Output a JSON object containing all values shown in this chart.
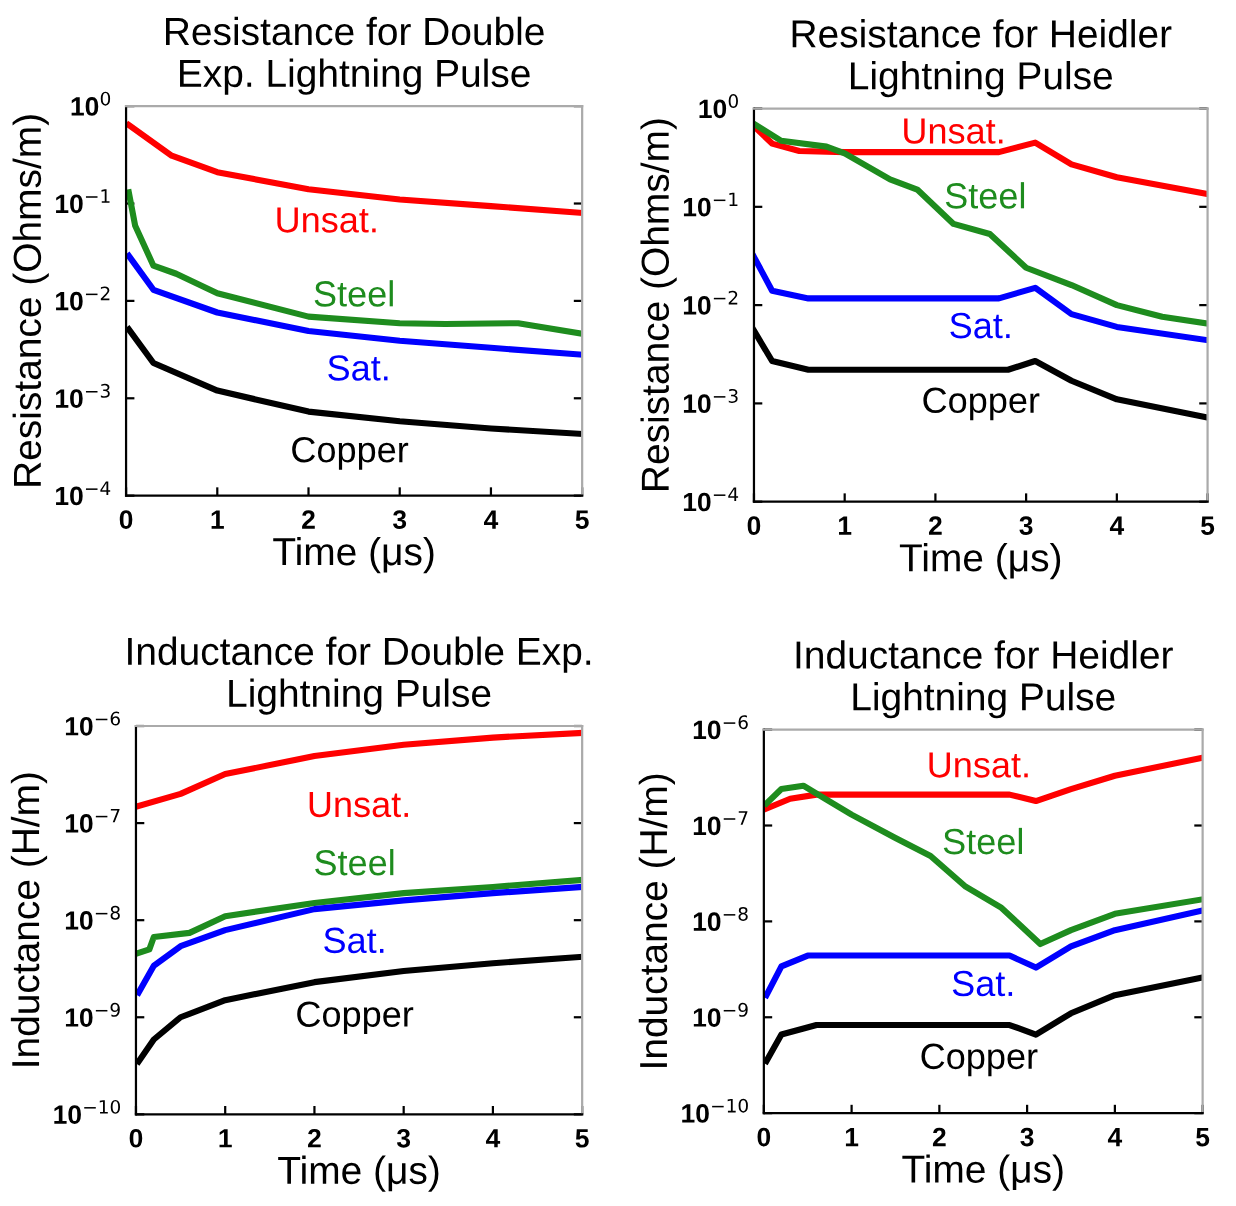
{
  "chart_data": [
    {
      "type": "line",
      "title": "Resistance for Double\nExp. Lightning Pulse",
      "xlabel": "Time (μs)",
      "ylabel": "Resistance (Ohms/m)",
      "log": "y",
      "xlim": [
        0,
        5
      ],
      "xticks": [
        0,
        1,
        2,
        3,
        4,
        5
      ],
      "ylim": [
        0.0001,
        1
      ],
      "yticks": [
        {
          "value": 0.0001,
          "label": "10$^{−4}$"
        },
        {
          "value": 0.001,
          "label": "10$^{−3}$"
        },
        {
          "value": 0.01,
          "label": "10$^{−2}$"
        },
        {
          "value": 0.1,
          "label": "10$^{−1}$"
        },
        {
          "value": 1,
          "label": "10$^{0}$"
        }
      ],
      "series": [
        {
          "name": "Unsat.",
          "color": "#ff0000",
          "x": [
            0.03,
            0.5,
            1,
            2,
            3,
            4,
            5
          ],
          "values": [
            0.64,
            0.31,
            0.21,
            0.14,
            0.11,
            0.094,
            0.08
          ]
        },
        {
          "name": "Steel",
          "color": "#1e8c1e",
          "x": [
            0.03,
            0.1,
            0.3,
            0.55,
            1,
            2,
            3,
            3.5,
            4.3,
            5
          ],
          "values": [
            0.13,
            0.059,
            0.023,
            0.019,
            0.012,
            0.0069,
            0.0059,
            0.0058,
            0.0059,
            0.0046
          ]
        },
        {
          "name": "Sat.",
          "color": "#0000ff",
          "x": [
            0.03,
            0.3,
            1,
            2,
            3,
            4,
            5
          ],
          "values": [
            0.029,
            0.013,
            0.0076,
            0.0049,
            0.0039,
            0.0033,
            0.0028
          ]
        },
        {
          "name": "Copper",
          "color": "#000000",
          "x": [
            0.03,
            0.3,
            1,
            2,
            3,
            4,
            5
          ],
          "values": [
            0.0051,
            0.0023,
            0.0012,
            0.00073,
            0.00058,
            0.00049,
            0.00043
          ]
        }
      ]
    },
    {
      "type": "line",
      "title": "Resistance for Heidler\nLightning Pulse",
      "xlabel": "Time (μs)",
      "ylabel": "Resistance (Ohms/m)",
      "log": "y",
      "xlim": [
        0,
        5
      ],
      "xticks": [
        0,
        1,
        2,
        3,
        4,
        5
      ],
      "ylim": [
        0.0001,
        1
      ],
      "yticks": [
        {
          "value": 0.0001,
          "label": "10$^{−4}$"
        },
        {
          "value": 0.001,
          "label": "10$^{−3}$"
        },
        {
          "value": 0.01,
          "label": "10$^{−2}$"
        },
        {
          "value": 0.1,
          "label": "10$^{−1}$"
        },
        {
          "value": 1,
          "label": "10$^{0}$"
        }
      ],
      "series": [
        {
          "name": "Unsat.",
          "color": "#ff0000",
          "x": [
            0,
            0.2,
            0.5,
            1,
            2.7,
            3.1,
            3.5,
            4,
            5
          ],
          "values": [
            0.66,
            0.44,
            0.37,
            0.36,
            0.36,
            0.45,
            0.27,
            0.2,
            0.135
          ]
        },
        {
          "name": "Steel",
          "color": "#1e8c1e",
          "x": [
            0,
            0.3,
            0.8,
            1,
            1.5,
            1.8,
            2.2,
            2.6,
            3,
            3.5,
            4,
            4.5,
            5
          ],
          "values": [
            0.7,
            0.47,
            0.41,
            0.35,
            0.19,
            0.15,
            0.067,
            0.053,
            0.024,
            0.016,
            0.01,
            0.0076,
            0.0065
          ]
        },
        {
          "name": "Sat.",
          "color": "#0000ff",
          "x": [
            0,
            0.2,
            0.6,
            2.7,
            3.1,
            3.5,
            4,
            5
          ],
          "values": [
            0.031,
            0.014,
            0.0117,
            0.0117,
            0.015,
            0.0081,
            0.006,
            0.0044
          ]
        },
        {
          "name": "Copper",
          "color": "#000000",
          "x": [
            0,
            0.2,
            0.6,
            2.8,
            3.1,
            3.5,
            4,
            5
          ],
          "values": [
            0.0055,
            0.0027,
            0.0022,
            0.0022,
            0.0027,
            0.0017,
            0.0011,
            0.00072
          ]
        }
      ]
    },
    {
      "type": "line",
      "title": "Inductance for Double Exp.\nLightning Pulse",
      "xlabel": "Time (μs)",
      "ylabel": "Inductance (H/m)",
      "log": "y",
      "xlim": [
        0,
        5
      ],
      "xticks": [
        0,
        1,
        2,
        3,
        4,
        5
      ],
      "ylim": [
        1e-10,
        1e-06
      ],
      "yticks": [
        {
          "value": 1e-10,
          "label": "10$^{−10}$"
        },
        {
          "value": 1e-09,
          "label": "10$^{−9}$"
        },
        {
          "value": 1e-08,
          "label": "10$^{−8}$"
        },
        {
          "value": 1e-07,
          "label": "10$^{−7}$"
        },
        {
          "value": 1e-06,
          "label": "10$^{−6}$"
        }
      ],
      "series": [
        {
          "name": "Unsat.",
          "color": "#ff0000",
          "x": [
            0.03,
            0.5,
            1,
            2,
            3,
            4,
            5
          ],
          "values": [
            1.5e-07,
            2e-07,
            3.2e-07,
            4.9e-07,
            6.4e-07,
            7.6e-07,
            8.5e-07
          ]
        },
        {
          "name": "Steel",
          "color": "#1e8c1e",
          "x": [
            0.03,
            0.15,
            0.2,
            0.6,
            1,
            2,
            3,
            4,
            5
          ],
          "values": [
            4.6e-09,
            5e-09,
            6.7e-09,
            7.4e-09,
            1.1e-08,
            1.5e-08,
            1.9e-08,
            2.2e-08,
            2.6e-08
          ]
        },
        {
          "name": "Sat.",
          "color": "#0000ff",
          "x": [
            0.03,
            0.2,
            0.5,
            1,
            2,
            3,
            4,
            5
          ],
          "values": [
            1.8e-09,
            3.4e-09,
            5.4e-09,
            7.9e-09,
            1.3e-08,
            1.6e-08,
            1.9e-08,
            2.2e-08
          ]
        },
        {
          "name": "Copper",
          "color": "#000000",
          "x": [
            0.03,
            0.2,
            0.5,
            1,
            2,
            3,
            4,
            5
          ],
          "values": [
            3.5e-10,
            5.9e-10,
            1e-09,
            1.5e-09,
            2.3e-09,
            3e-09,
            3.6e-09,
            4.2e-09
          ]
        }
      ]
    },
    {
      "type": "line",
      "title": "Inductance for Heidler\nLightning Pulse",
      "xlabel": "Time (μs)",
      "ylabel": "Inductance (H/m)",
      "log": "y",
      "xlim": [
        0,
        5
      ],
      "xticks": [
        0,
        1,
        2,
        3,
        4,
        5
      ],
      "ylim": [
        1e-10,
        1e-06
      ],
      "yticks": [
        {
          "value": 1e-10,
          "label": "10$^{−10}$"
        },
        {
          "value": 1e-09,
          "label": "10$^{−9}$"
        },
        {
          "value": 1e-08,
          "label": "10$^{−8}$"
        },
        {
          "value": 1e-07,
          "label": "10$^{−7}$"
        },
        {
          "value": 1e-06,
          "label": "10$^{−6}$"
        }
      ],
      "series": [
        {
          "name": "Unsat.",
          "color": "#ff0000",
          "x": [
            0.03,
            0.3,
            0.6,
            2.8,
            3.1,
            3.5,
            4,
            5
          ],
          "values": [
            1.5e-07,
            1.9e-07,
            2.1e-07,
            2.1e-07,
            1.8e-07,
            2.4e-07,
            3.3e-07,
            5.1e-07
          ]
        },
        {
          "name": "Steel",
          "color": "#1e8c1e",
          "x": [
            0.03,
            0.2,
            0.45,
            0.7,
            1,
            1.5,
            1.9,
            2.3,
            2.7,
            2.9,
            3.15,
            3.5,
            4,
            5
          ],
          "values": [
            1.7e-07,
            2.4e-07,
            2.6e-07,
            1.9e-07,
            1.3e-07,
            7.4e-08,
            4.8e-08,
            2.3e-08,
            1.4e-08,
            9.5e-09,
            5.8e-09,
            8.1e-09,
            1.2e-08,
            1.7e-08
          ]
        },
        {
          "name": "Sat.",
          "color": "#0000ff",
          "x": [
            0.03,
            0.2,
            0.5,
            2.8,
            3.1,
            3.5,
            4,
            5
          ],
          "values": [
            1.7e-09,
            3.4e-09,
            4.4e-09,
            4.4e-09,
            3.3e-09,
            5.5e-09,
            8.1e-09,
            1.3e-08
          ]
        },
        {
          "name": "Copper",
          "color": "#000000",
          "x": [
            0.03,
            0.2,
            0.6,
            2.8,
            3.1,
            3.5,
            4,
            5
          ],
          "values": [
            3.5e-10,
            6.6e-10,
            8.3e-10,
            8.3e-10,
            6.6e-10,
            1.1e-09,
            1.7e-09,
            2.6e-09
          ]
        }
      ]
    }
  ]
}
